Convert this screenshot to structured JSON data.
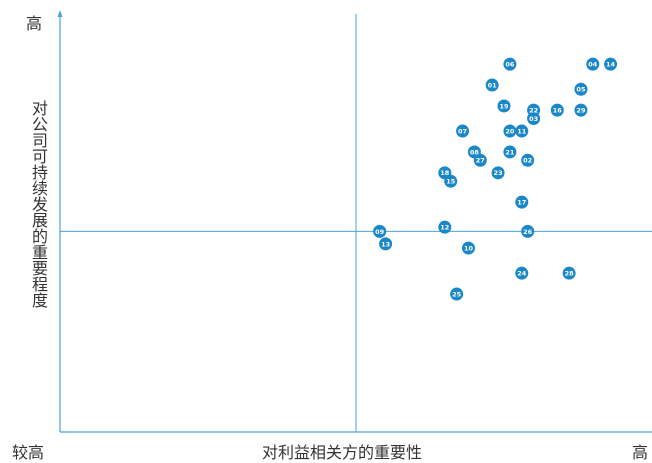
{
  "chart_data": {
    "type": "scatter",
    "title": "",
    "xlabel": "对利益相关方的重要性",
    "ylabel": "对公司可持续发展的重要程度",
    "x_low_label": "较高",
    "x_high_label": "高",
    "y_high_label": "高",
    "xlim": [
      0,
      10
    ],
    "ylim": [
      0,
      10
    ],
    "divider_x": 5.0,
    "divider_y": 4.8,
    "grid": false,
    "colors": {
      "axis": "#4ba3dc",
      "point": "#1a87c8",
      "point_text": "#ffffff"
    },
    "points": [
      {
        "label": "01",
        "x": 7.3,
        "y": 8.3
      },
      {
        "label": "02",
        "x": 7.9,
        "y": 6.5
      },
      {
        "label": "03",
        "x": 8.0,
        "y": 7.5
      },
      {
        "label": "04",
        "x": 9.0,
        "y": 8.8
      },
      {
        "label": "05",
        "x": 8.8,
        "y": 8.2
      },
      {
        "label": "06",
        "x": 7.6,
        "y": 8.8
      },
      {
        "label": "07",
        "x": 6.8,
        "y": 7.2
      },
      {
        "label": "08",
        "x": 7.0,
        "y": 6.7
      },
      {
        "label": "09",
        "x": 5.4,
        "y": 4.8
      },
      {
        "label": "10",
        "x": 6.9,
        "y": 4.4
      },
      {
        "label": "11",
        "x": 7.8,
        "y": 7.2
      },
      {
        "label": "12",
        "x": 6.5,
        "y": 4.9
      },
      {
        "label": "13",
        "x": 5.5,
        "y": 4.5
      },
      {
        "label": "14",
        "x": 9.3,
        "y": 8.8
      },
      {
        "label": "15",
        "x": 6.6,
        "y": 6.0
      },
      {
        "label": "16",
        "x": 8.4,
        "y": 7.7
      },
      {
        "label": "17",
        "x": 7.8,
        "y": 5.5
      },
      {
        "label": "18",
        "x": 6.5,
        "y": 6.2
      },
      {
        "label": "19",
        "x": 7.5,
        "y": 7.8
      },
      {
        "label": "20",
        "x": 7.6,
        "y": 7.2
      },
      {
        "label": "21",
        "x": 7.6,
        "y": 6.7
      },
      {
        "label": "22",
        "x": 8.0,
        "y": 7.7
      },
      {
        "label": "23",
        "x": 7.4,
        "y": 6.2
      },
      {
        "label": "24",
        "x": 7.8,
        "y": 3.8
      },
      {
        "label": "25",
        "x": 6.7,
        "y": 3.3
      },
      {
        "label": "26",
        "x": 7.9,
        "y": 4.8
      },
      {
        "label": "27",
        "x": 7.1,
        "y": 6.5
      },
      {
        "label": "28",
        "x": 8.6,
        "y": 3.8
      },
      {
        "label": "29",
        "x": 8.8,
        "y": 7.7
      }
    ]
  }
}
